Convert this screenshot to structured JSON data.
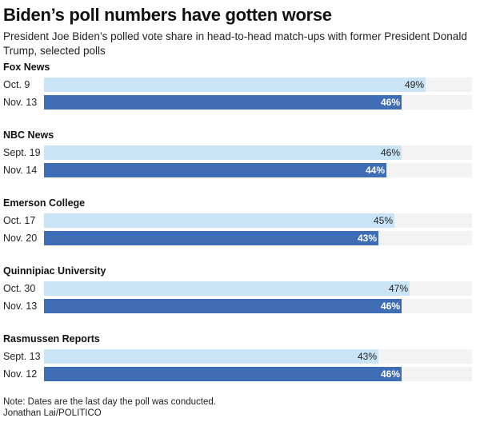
{
  "chart_data": {
    "type": "bar",
    "orientation": "horizontal",
    "title": "Biden’s poll numbers have gotten worse",
    "subtitle": "President Joe Biden’s polled vote share in head-to-head match-ups with former President Donald Trump, selected polls",
    "xlim": [
      0,
      55
    ],
    "unit": "%",
    "groups": [
      {
        "name": "Fox News",
        "bars": [
          {
            "label": "Oct. 9",
            "value": 49
          },
          {
            "label": "Nov. 13",
            "value": 46
          }
        ]
      },
      {
        "name": "NBC News",
        "bars": [
          {
            "label": "Sept. 19",
            "value": 46
          },
          {
            "label": "Nov. 14",
            "value": 44
          }
        ]
      },
      {
        "name": "Emerson College",
        "bars": [
          {
            "label": "Oct. 17",
            "value": 45
          },
          {
            "label": "Nov. 20",
            "value": 43
          }
        ]
      },
      {
        "name": "Quinnipiac University",
        "bars": [
          {
            "label": "Oct. 30",
            "value": 47
          },
          {
            "label": "Nov. 13",
            "value": 46
          }
        ]
      },
      {
        "name": "Rasmussen Reports",
        "bars": [
          {
            "label": "Sept. 13",
            "value": 43
          },
          {
            "label": "Nov. 12",
            "value": 46
          }
        ]
      }
    ],
    "colors": {
      "first": "#c9e4f7",
      "second": "#3e6db5",
      "track": "#f3f3f3"
    }
  },
  "note": "Note: Dates are the last day the poll was conducted.",
  "credit": "Jonathan Lai/POLITICO"
}
